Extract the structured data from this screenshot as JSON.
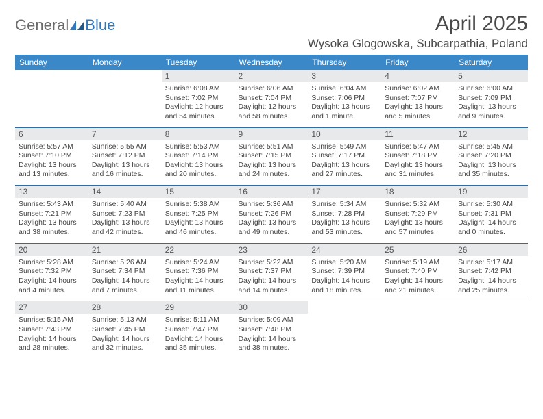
{
  "brand": {
    "part1": "General",
    "part2": "Blue"
  },
  "title": "April 2025",
  "location": "Wysoka Glogowska, Subcarpathia, Poland",
  "colors": {
    "header_bg": "#3b88c9",
    "header_fg": "#ffffff",
    "row_divider": "#2f6ca3",
    "daynum_bg": "#e7e9eb",
    "text": "#444444",
    "brand_gray": "#6b6b6b",
    "brand_blue": "#2f78bd",
    "page_bg": "#ffffff"
  },
  "weekdays": [
    "Sunday",
    "Monday",
    "Tuesday",
    "Wednesday",
    "Thursday",
    "Friday",
    "Saturday"
  ],
  "weeks": [
    [
      {
        "n": "",
        "sunrise": "",
        "sunset": "",
        "daylight": ""
      },
      {
        "n": "",
        "sunrise": "",
        "sunset": "",
        "daylight": ""
      },
      {
        "n": "1",
        "sunrise": "Sunrise: 6:08 AM",
        "sunset": "Sunset: 7:02 PM",
        "daylight": "Daylight: 12 hours and 54 minutes."
      },
      {
        "n": "2",
        "sunrise": "Sunrise: 6:06 AM",
        "sunset": "Sunset: 7:04 PM",
        "daylight": "Daylight: 12 hours and 58 minutes."
      },
      {
        "n": "3",
        "sunrise": "Sunrise: 6:04 AM",
        "sunset": "Sunset: 7:06 PM",
        "daylight": "Daylight: 13 hours and 1 minute."
      },
      {
        "n": "4",
        "sunrise": "Sunrise: 6:02 AM",
        "sunset": "Sunset: 7:07 PM",
        "daylight": "Daylight: 13 hours and 5 minutes."
      },
      {
        "n": "5",
        "sunrise": "Sunrise: 6:00 AM",
        "sunset": "Sunset: 7:09 PM",
        "daylight": "Daylight: 13 hours and 9 minutes."
      }
    ],
    [
      {
        "n": "6",
        "sunrise": "Sunrise: 5:57 AM",
        "sunset": "Sunset: 7:10 PM",
        "daylight": "Daylight: 13 hours and 13 minutes."
      },
      {
        "n": "7",
        "sunrise": "Sunrise: 5:55 AM",
        "sunset": "Sunset: 7:12 PM",
        "daylight": "Daylight: 13 hours and 16 minutes."
      },
      {
        "n": "8",
        "sunrise": "Sunrise: 5:53 AM",
        "sunset": "Sunset: 7:14 PM",
        "daylight": "Daylight: 13 hours and 20 minutes."
      },
      {
        "n": "9",
        "sunrise": "Sunrise: 5:51 AM",
        "sunset": "Sunset: 7:15 PM",
        "daylight": "Daylight: 13 hours and 24 minutes."
      },
      {
        "n": "10",
        "sunrise": "Sunrise: 5:49 AM",
        "sunset": "Sunset: 7:17 PM",
        "daylight": "Daylight: 13 hours and 27 minutes."
      },
      {
        "n": "11",
        "sunrise": "Sunrise: 5:47 AM",
        "sunset": "Sunset: 7:18 PM",
        "daylight": "Daylight: 13 hours and 31 minutes."
      },
      {
        "n": "12",
        "sunrise": "Sunrise: 5:45 AM",
        "sunset": "Sunset: 7:20 PM",
        "daylight": "Daylight: 13 hours and 35 minutes."
      }
    ],
    [
      {
        "n": "13",
        "sunrise": "Sunrise: 5:43 AM",
        "sunset": "Sunset: 7:21 PM",
        "daylight": "Daylight: 13 hours and 38 minutes."
      },
      {
        "n": "14",
        "sunrise": "Sunrise: 5:40 AM",
        "sunset": "Sunset: 7:23 PM",
        "daylight": "Daylight: 13 hours and 42 minutes."
      },
      {
        "n": "15",
        "sunrise": "Sunrise: 5:38 AM",
        "sunset": "Sunset: 7:25 PM",
        "daylight": "Daylight: 13 hours and 46 minutes."
      },
      {
        "n": "16",
        "sunrise": "Sunrise: 5:36 AM",
        "sunset": "Sunset: 7:26 PM",
        "daylight": "Daylight: 13 hours and 49 minutes."
      },
      {
        "n": "17",
        "sunrise": "Sunrise: 5:34 AM",
        "sunset": "Sunset: 7:28 PM",
        "daylight": "Daylight: 13 hours and 53 minutes."
      },
      {
        "n": "18",
        "sunrise": "Sunrise: 5:32 AM",
        "sunset": "Sunset: 7:29 PM",
        "daylight": "Daylight: 13 hours and 57 minutes."
      },
      {
        "n": "19",
        "sunrise": "Sunrise: 5:30 AM",
        "sunset": "Sunset: 7:31 PM",
        "daylight": "Daylight: 14 hours and 0 minutes."
      }
    ],
    [
      {
        "n": "20",
        "sunrise": "Sunrise: 5:28 AM",
        "sunset": "Sunset: 7:32 PM",
        "daylight": "Daylight: 14 hours and 4 minutes."
      },
      {
        "n": "21",
        "sunrise": "Sunrise: 5:26 AM",
        "sunset": "Sunset: 7:34 PM",
        "daylight": "Daylight: 14 hours and 7 minutes."
      },
      {
        "n": "22",
        "sunrise": "Sunrise: 5:24 AM",
        "sunset": "Sunset: 7:36 PM",
        "daylight": "Daylight: 14 hours and 11 minutes."
      },
      {
        "n": "23",
        "sunrise": "Sunrise: 5:22 AM",
        "sunset": "Sunset: 7:37 PM",
        "daylight": "Daylight: 14 hours and 14 minutes."
      },
      {
        "n": "24",
        "sunrise": "Sunrise: 5:20 AM",
        "sunset": "Sunset: 7:39 PM",
        "daylight": "Daylight: 14 hours and 18 minutes."
      },
      {
        "n": "25",
        "sunrise": "Sunrise: 5:19 AM",
        "sunset": "Sunset: 7:40 PM",
        "daylight": "Daylight: 14 hours and 21 minutes."
      },
      {
        "n": "26",
        "sunrise": "Sunrise: 5:17 AM",
        "sunset": "Sunset: 7:42 PM",
        "daylight": "Daylight: 14 hours and 25 minutes."
      }
    ],
    [
      {
        "n": "27",
        "sunrise": "Sunrise: 5:15 AM",
        "sunset": "Sunset: 7:43 PM",
        "daylight": "Daylight: 14 hours and 28 minutes."
      },
      {
        "n": "28",
        "sunrise": "Sunrise: 5:13 AM",
        "sunset": "Sunset: 7:45 PM",
        "daylight": "Daylight: 14 hours and 32 minutes."
      },
      {
        "n": "29",
        "sunrise": "Sunrise: 5:11 AM",
        "sunset": "Sunset: 7:47 PM",
        "daylight": "Daylight: 14 hours and 35 minutes."
      },
      {
        "n": "30",
        "sunrise": "Sunrise: 5:09 AM",
        "sunset": "Sunset: 7:48 PM",
        "daylight": "Daylight: 14 hours and 38 minutes."
      },
      {
        "n": "",
        "sunrise": "",
        "sunset": "",
        "daylight": ""
      },
      {
        "n": "",
        "sunrise": "",
        "sunset": "",
        "daylight": ""
      },
      {
        "n": "",
        "sunrise": "",
        "sunset": "",
        "daylight": ""
      }
    ]
  ]
}
